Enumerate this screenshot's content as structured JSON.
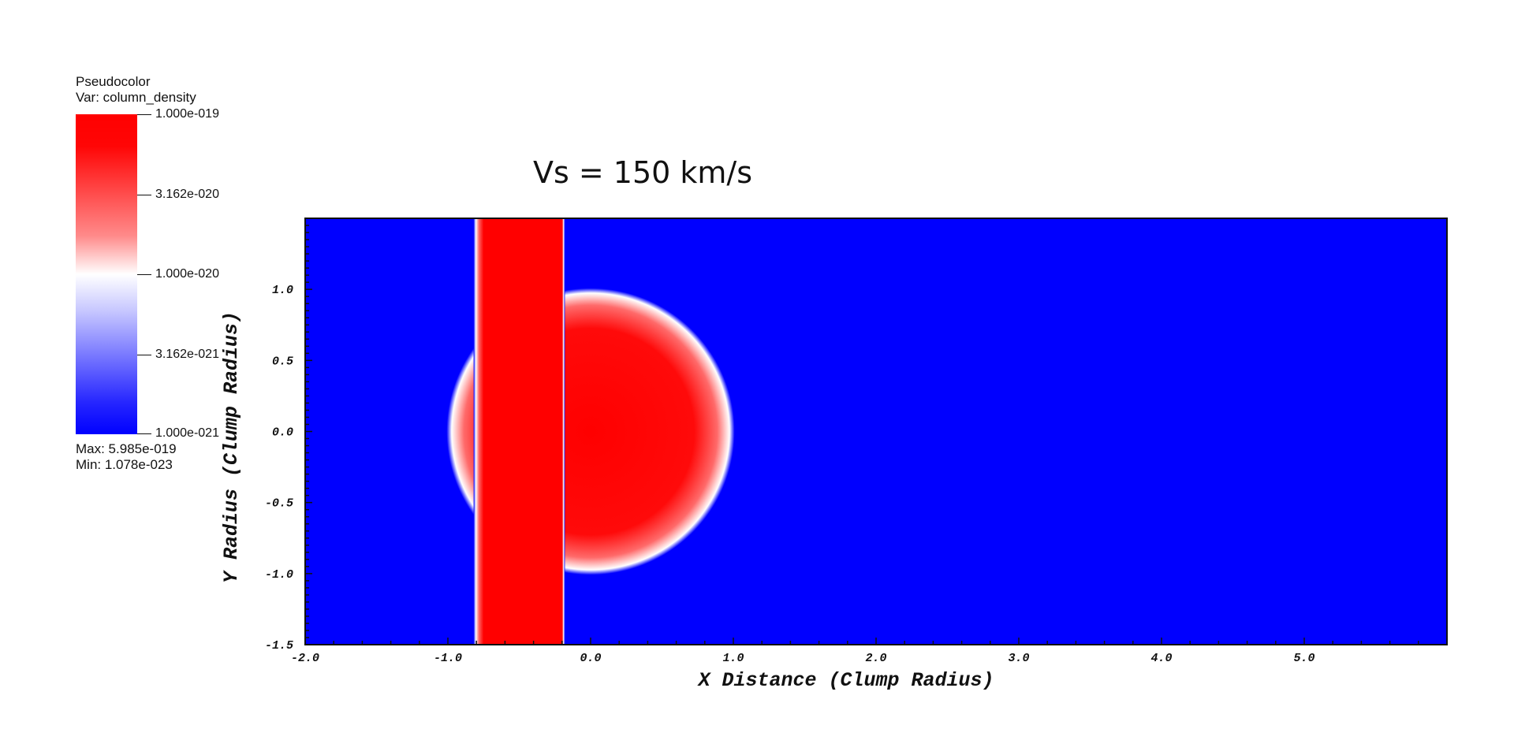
{
  "legend": {
    "title_line1": "Pseudocolor",
    "title_line2": "Var: column_density",
    "ticks": [
      "1.000e-019",
      "3.162e-020",
      "1.000e-020",
      "3.162e-021",
      "1.000e-021"
    ],
    "max_text": "Max:  5.985e-019",
    "min_text": "Min:  1.078e-023",
    "colors": {
      "high": "#ff0000",
      "mid": "#ffffff",
      "low": "#0000ff"
    }
  },
  "chart_data": {
    "type": "heatmap",
    "title": "Vs = 150 km/s",
    "xlabel": "X Distance (Clump Radius)",
    "ylabel": "Y Radius (Clump Radius)",
    "xlim": [
      -2.0,
      6.0
    ],
    "ylim": [
      -1.5,
      1.5
    ],
    "x_ticks": [
      "-2.0",
      "-1.0",
      "0.0",
      "1.0",
      "2.0",
      "3.0",
      "4.0",
      "5.0"
    ],
    "x_tick_values": [
      -2,
      -1,
      0,
      1,
      2,
      3,
      4,
      5
    ],
    "y_ticks": [
      "-1.5",
      "-1.0",
      "-0.5",
      "0.0",
      "0.5",
      "1.0"
    ],
    "y_tick_values": [
      -1.5,
      -1.0,
      -0.5,
      0.0,
      0.5,
      1.0
    ],
    "background_value_color": "#0000ff",
    "features": [
      {
        "name": "shocked slab",
        "x_range": [
          -0.82,
          -0.18
        ],
        "y_range": [
          -1.5,
          1.5
        ],
        "color": "#ff0000"
      },
      {
        "name": "clump",
        "center": [
          0.0,
          0.0
        ],
        "radius": 0.97,
        "color": "#ff0000"
      }
    ]
  }
}
